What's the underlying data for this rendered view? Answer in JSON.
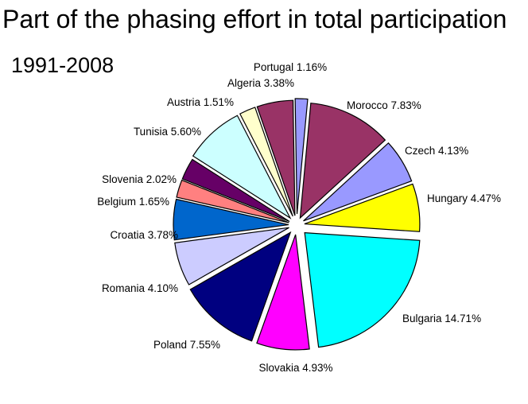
{
  "chart_data": {
    "type": "pie",
    "title": "Part of the phasing effort in total participation",
    "subtitle": "1991-2008",
    "slices": [
      {
        "label": "Portugal 1.16%",
        "value": 1.16,
        "color": "#9999ff"
      },
      {
        "label": "Morocco 7.83%",
        "value": 7.83,
        "color": "#993366"
      },
      {
        "label": "Czech 4.13%",
        "value": 4.13,
        "color": "#9999ff"
      },
      {
        "label": "Hungary 4.47%",
        "value": 4.47,
        "color": "#ffff00"
      },
      {
        "label": "Bulgaria 14.71%",
        "value": 14.71,
        "color": "#00ffff"
      },
      {
        "label": "Slovakia 4.93%",
        "value": 4.93,
        "color": "#ff00ff"
      },
      {
        "label": "Poland 7.55%",
        "value": 7.55,
        "color": "#000080"
      },
      {
        "label": "Romania 4.10%",
        "value": 4.1,
        "color": "#ccccff"
      },
      {
        "label": "Croatia 3.78%",
        "value": 3.78,
        "color": "#0066cc"
      },
      {
        "label": "Belgium 1.65%",
        "value": 1.65,
        "color": "#ff8080"
      },
      {
        "label": "Slovenia 2.02%",
        "value": 2.02,
        "color": "#660066"
      },
      {
        "label": "Tunisia 5.60%",
        "value": 5.6,
        "color": "#ccffff"
      },
      {
        "label": "Austria 1.51%",
        "value": 1.51,
        "color": "#ffffcc"
      },
      {
        "label": "Algeria 3.38%",
        "value": 3.38,
        "color": "#993366"
      }
    ]
  }
}
